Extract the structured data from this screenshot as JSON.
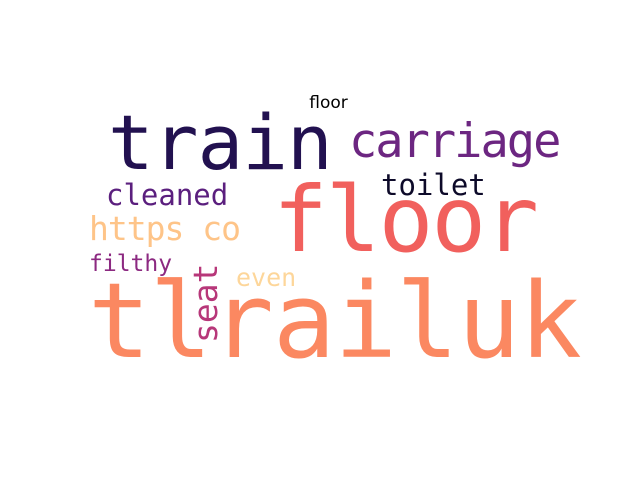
{
  "title": "floor",
  "words": [
    {
      "text": "tlrailuk",
      "color": "#fb8861"
    },
    {
      "text": "floor",
      "color": "#f1605d"
    },
    {
      "text": "train",
      "color": "#221150"
    },
    {
      "text": "carriage",
      "color": "#6c2681"
    },
    {
      "text": "toilet",
      "color": "#0d0a29"
    },
    {
      "text": "cleaned",
      "color": "#5b1f7e"
    },
    {
      "text": "https co",
      "color": "#fec488"
    },
    {
      "text": "filthy",
      "color": "#8c2981"
    },
    {
      "text": "seat",
      "color": "#b73779"
    },
    {
      "text": "even",
      "color": "#fdd69a"
    }
  ]
}
